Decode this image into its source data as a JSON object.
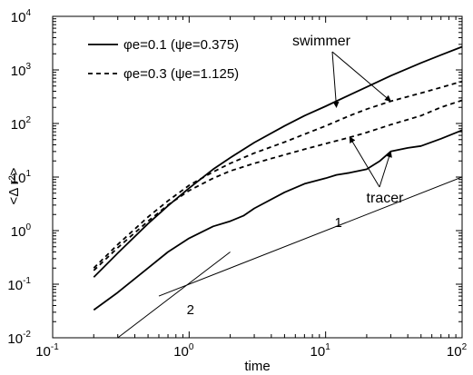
{
  "chart_data": {
    "type": "line",
    "title": "",
    "xlabel": "time",
    "ylabel": "<Δ r²>",
    "xscale": "log",
    "yscale": "log",
    "xlim": [
      0.1,
      100
    ],
    "ylim": [
      0.01,
      10000
    ],
    "grid": false,
    "legend_position": "top-left",
    "x_ticks": [
      {
        "value": 0.1,
        "base": "10",
        "exp": "-1"
      },
      {
        "value": 1,
        "base": "10",
        "exp": "0"
      },
      {
        "value": 10,
        "base": "10",
        "exp": "1"
      },
      {
        "value": 100,
        "base": "10",
        "exp": "2"
      }
    ],
    "y_ticks": [
      {
        "value": 0.01,
        "base": "10",
        "exp": "-2"
      },
      {
        "value": 0.1,
        "base": "10",
        "exp": "-1"
      },
      {
        "value": 1,
        "base": "10",
        "exp": "0"
      },
      {
        "value": 10,
        "base": "10",
        "exp": "1"
      },
      {
        "value": 100,
        "base": "10",
        "exp": "2"
      },
      {
        "value": 1000,
        "base": "10",
        "exp": "3"
      },
      {
        "value": 10000,
        "base": "10",
        "exp": "4"
      }
    ],
    "legend": [
      {
        "label": "φe=0.1 (ψe=0.375)",
        "style": "solid"
      },
      {
        "label": "φe=0.3 (ψe=1.125)",
        "style": "dashed"
      }
    ],
    "series": [
      {
        "name": "φe=0.1 (ψe=0.375)",
        "group": "swimmer",
        "style": "solid",
        "x": [
          0.2,
          0.3,
          0.5,
          0.7,
          1,
          1.5,
          2,
          3,
          5,
          7,
          10,
          15,
          20,
          30,
          50,
          70,
          100
        ],
        "y": [
          0.135,
          0.38,
          1.35,
          2.9,
          6.2,
          14,
          23,
          44,
          90,
          140,
          210,
          340,
          480,
          780,
          1350,
          1900,
          2700
        ]
      },
      {
        "name": "φe=0.3 (ψe=1.125)",
        "group": "swimmer",
        "style": "dashed",
        "x": [
          0.2,
          0.3,
          0.5,
          0.7,
          1,
          1.5,
          2,
          3,
          5,
          7,
          10,
          15,
          20,
          30,
          50,
          70,
          100
        ],
        "y": [
          0.2,
          0.55,
          1.8,
          3.6,
          7,
          12.5,
          18,
          28,
          45,
          63,
          90,
          140,
          185,
          260,
          370,
          470,
          610
        ]
      },
      {
        "name": "φe=0.1 (ψe=0.375)",
        "group": "tracer",
        "style": "solid",
        "x": [
          0.2,
          0.3,
          0.5,
          0.7,
          1,
          1.5,
          2,
          2.5,
          3,
          5,
          7,
          10,
          12,
          15,
          20,
          25,
          30,
          40,
          50,
          70,
          100
        ],
        "y": [
          0.033,
          0.07,
          0.2,
          0.4,
          0.72,
          1.2,
          1.5,
          1.9,
          2.6,
          5.2,
          7.5,
          9.5,
          11,
          12,
          14,
          20,
          30,
          35,
          38,
          52,
          75
        ]
      },
      {
        "name": "φe=0.3 (ψe=1.125)",
        "group": "tracer",
        "style": "dashed",
        "x": [
          0.2,
          0.3,
          0.5,
          0.7,
          1,
          1.5,
          2,
          3,
          5,
          7,
          10,
          15,
          20,
          30,
          50,
          70,
          100
        ],
        "y": [
          0.18,
          0.48,
          1.5,
          3,
          5.6,
          9.5,
          13,
          18,
          26,
          33,
          42,
          55,
          68,
          95,
          140,
          200,
          270
        ]
      }
    ],
    "reference_lines": [
      {
        "label": "1",
        "slope": 1,
        "x": [
          0.6,
          100
        ],
        "y": [
          0.06,
          10
        ]
      },
      {
        "label": "2",
        "slope": 2,
        "x": [
          0.3,
          2
        ],
        "y": [
          0.01,
          0.4
        ]
      }
    ],
    "annotations": [
      {
        "text": "swimmer",
        "arrows_to": [
          [
            12,
            200
          ],
          [
            30,
            260
          ]
        ]
      },
      {
        "text": "tracer",
        "arrows_to": [
          [
            30,
            30
          ],
          [
            15,
            56
          ]
        ]
      }
    ]
  }
}
